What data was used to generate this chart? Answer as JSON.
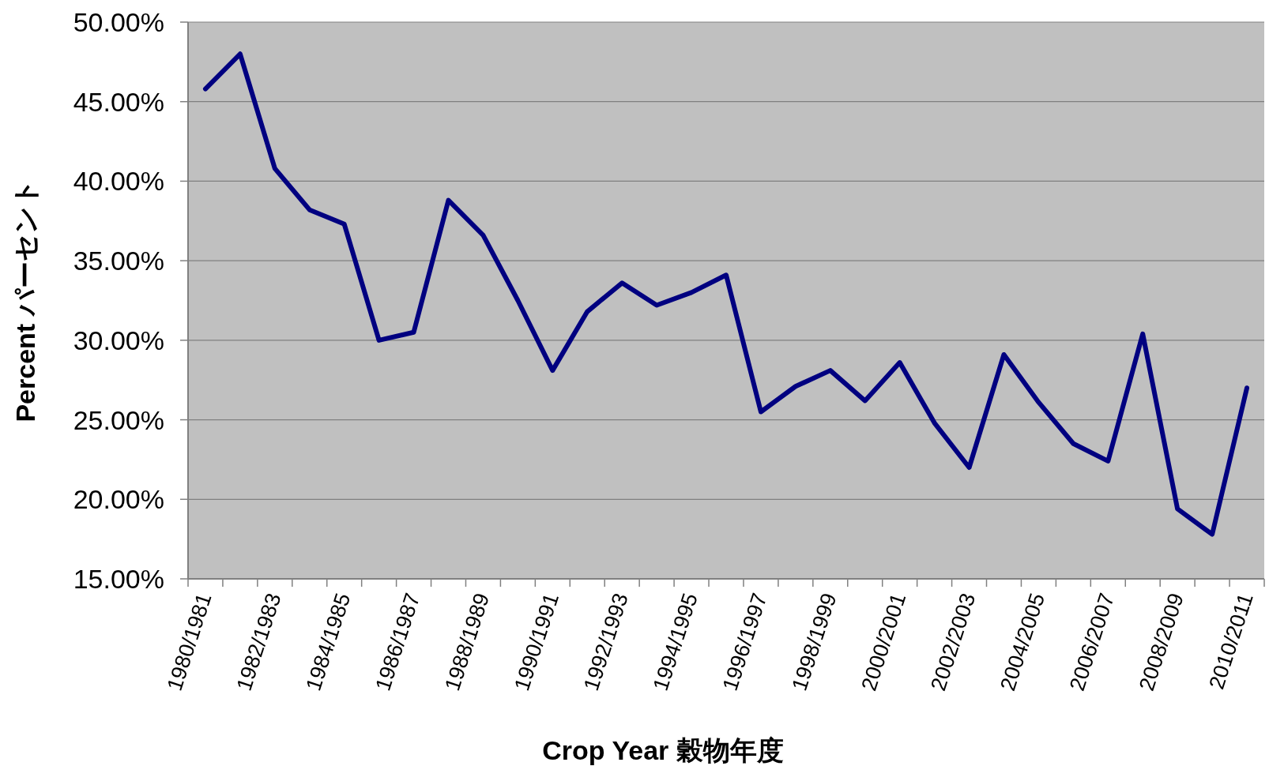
{
  "chart_data": {
    "type": "line",
    "xlabel": "Crop Year  穀物年度",
    "ylabel": "Percent  パーセント",
    "categories": [
      "1980/1981",
      null,
      "1982/1983",
      null,
      "1984/1985",
      null,
      "1986/1987",
      null,
      "1988/1989",
      null,
      "1990/1991",
      null,
      "1992/1993",
      null,
      "1994/1995",
      null,
      "1996/1997",
      null,
      "1998/1999",
      null,
      "2000/2001",
      null,
      "2002/2003",
      null,
      "2004/2005",
      null,
      "2006/2007",
      null,
      "2008/2009",
      null,
      "2010/2011"
    ],
    "series": [
      {
        "color": "#000080",
        "values": [
          45.8,
          48.0,
          40.8,
          38.2,
          37.3,
          30.0,
          30.5,
          38.8,
          36.6,
          32.5,
          28.1,
          31.8,
          33.6,
          32.2,
          33.0,
          34.1,
          25.5,
          27.1,
          28.1,
          26.2,
          28.6,
          24.8,
          22.0,
          29.1,
          26.1,
          23.5,
          22.4,
          30.4,
          19.4,
          17.8,
          27.0
        ]
      }
    ],
    "ylim": [
      15,
      50
    ],
    "yticks": [
      {
        "value": 15,
        "label": "15.00%"
      },
      {
        "value": 20,
        "label": "20.00%"
      },
      {
        "value": 25,
        "label": "25.00%"
      },
      {
        "value": 30,
        "label": "30.00%"
      },
      {
        "value": 35,
        "label": "35.00%"
      },
      {
        "value": 40,
        "label": "40.00%"
      },
      {
        "value": 45,
        "label": "45.00%"
      },
      {
        "value": 50,
        "label": "50.00%"
      }
    ],
    "grid": "y",
    "marker": "none",
    "line_style": "solid"
  }
}
